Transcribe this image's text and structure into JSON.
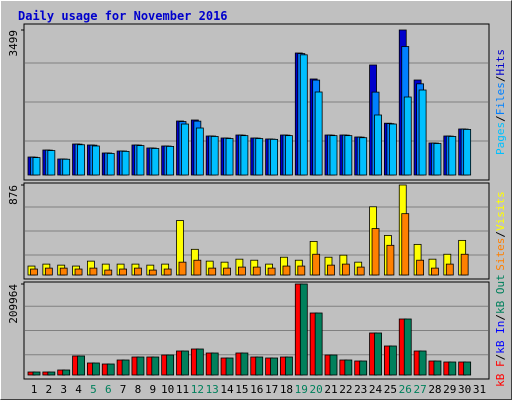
{
  "title": "Daily usage for November 2016",
  "label_separator": "/",
  "chart_data": [
    {
      "type": "bar",
      "draw_reversed": true,
      "series": [
        {
          "name": "Pages",
          "color": "#00c0ff",
          "values": [
            420,
            590,
            380,
            730,
            700,
            520,
            570,
            710,
            640,
            690,
            1230,
            1134,
            930,
            880,
            950,
            880,
            860,
            950,
            2900,
            2003,
            950,
            950,
            900,
            1448,
            1230,
            1882,
            2051,
            760,
            930,
            1100,
            0
          ]
        },
        {
          "name": "Files",
          "color": "#0080ff",
          "values": [
            430,
            600,
            385,
            745,
            720,
            530,
            578,
            722,
            650,
            698,
            1290,
            1300,
            940,
            890,
            962,
            890,
            866,
            962,
            2930,
            2290,
            962,
            962,
            914,
            2000,
            1240,
            3100,
            2200,
            770,
            938,
            1108,
            0
          ]
        },
        {
          "name": "Hits",
          "color": "#0000cc",
          "values": [
            434,
            603,
            386,
            748,
            724,
            531,
            579,
            724,
            652,
            700,
            1303,
            1327,
            941,
            893,
            965,
            893,
            869,
            965,
            2944,
            2317,
            965,
            965,
            917,
            2654,
            1250,
            3499,
            2292,
            772,
            941,
            1110,
            0
          ]
        }
      ],
      "ylim": [
        0,
        3499
      ],
      "yticks": [
        3499
      ]
    },
    {
      "type": "bar",
      "draw_reversed": true,
      "series": [
        {
          "name": "Sites",
          "color": "#ff8000",
          "values": [
            58,
            67,
            67,
            58,
            67,
            48,
            58,
            67,
            48,
            58,
            125,
            144,
            67,
            67,
            77,
            77,
            67,
            87,
            87,
            202,
            96,
            106,
            77,
            452,
            289,
            597,
            144,
            67,
            106,
            202,
            0
          ]
        },
        {
          "name": "Visits",
          "color": "#ffff00",
          "values": [
            87,
            106,
            96,
            87,
            135,
            106,
            106,
            106,
            96,
            106,
            530,
            250,
            135,
            125,
            154,
            144,
            106,
            173,
            144,
            327,
            173,
            193,
            125,
            664,
            385,
            876,
            298,
            154,
            202,
            337,
            0
          ]
        }
      ],
      "ylim": [
        0,
        876
      ],
      "yticks": [
        876
      ]
    },
    {
      "type": "bar",
      "draw_reversed": false,
      "categories": [
        "1",
        "2",
        "3",
        "4",
        "5",
        "6",
        "7",
        "8",
        "9",
        "10",
        "11",
        "12",
        "13",
        "14",
        "15",
        "16",
        "17",
        "18",
        "19",
        "20",
        "21",
        "22",
        "23",
        "24",
        "25",
        "26",
        "27",
        "28",
        "29",
        "30",
        "31"
      ],
      "category_colors": [
        "#000000",
        "#000000",
        "#000000",
        "#000000",
        "#00805c",
        "#00805c",
        "#000000",
        "#000000",
        "#000000",
        "#000000",
        "#000000",
        "#00805c",
        "#00805c",
        "#000000",
        "#000000",
        "#000000",
        "#000000",
        "#000000",
        "#00805c",
        "#00805c",
        "#000000",
        "#000000",
        "#000000",
        "#000000",
        "#000000",
        "#00805c",
        "#00805c",
        "#000000",
        "#000000",
        "#000000",
        "#000000"
      ],
      "series": [
        {
          "name": "kB F",
          "color": "#ff0000",
          "values": [
            6922,
            6922,
            11536,
            43837,
            27688,
            25380,
            34610,
            41532,
            41532,
            46145,
            55375,
            59989,
            50760,
            39224,
            50760,
            41532,
            39224,
            41532,
            209964,
            143052,
            46145,
            34610,
            32303,
            96911,
            66910,
            129210,
            55375,
            32303,
            29995,
            29995,
            0
          ]
        },
        {
          "name": "kB In",
          "color": "#0000ff",
          "values": [
            0,
            0,
            0,
            0,
            0,
            0,
            0,
            0,
            0,
            0,
            0,
            0,
            0,
            0,
            0,
            0,
            0,
            0,
            0,
            0,
            0,
            0,
            0,
            0,
            0,
            0,
            0,
            0,
            0,
            0,
            0
          ]
        },
        {
          "name": "kB Out",
          "color": "#00805c",
          "values": [
            6922,
            6922,
            11536,
            43837,
            27688,
            25380,
            34610,
            41532,
            41532,
            46145,
            55375,
            59989,
            50760,
            39224,
            50760,
            41532,
            39224,
            41532,
            209964,
            143052,
            46145,
            34610,
            32303,
            96911,
            66910,
            129210,
            55375,
            32303,
            29995,
            29995,
            0
          ]
        }
      ],
      "ylim": [
        0,
        209964
      ],
      "yticks": [
        209964
      ]
    }
  ]
}
